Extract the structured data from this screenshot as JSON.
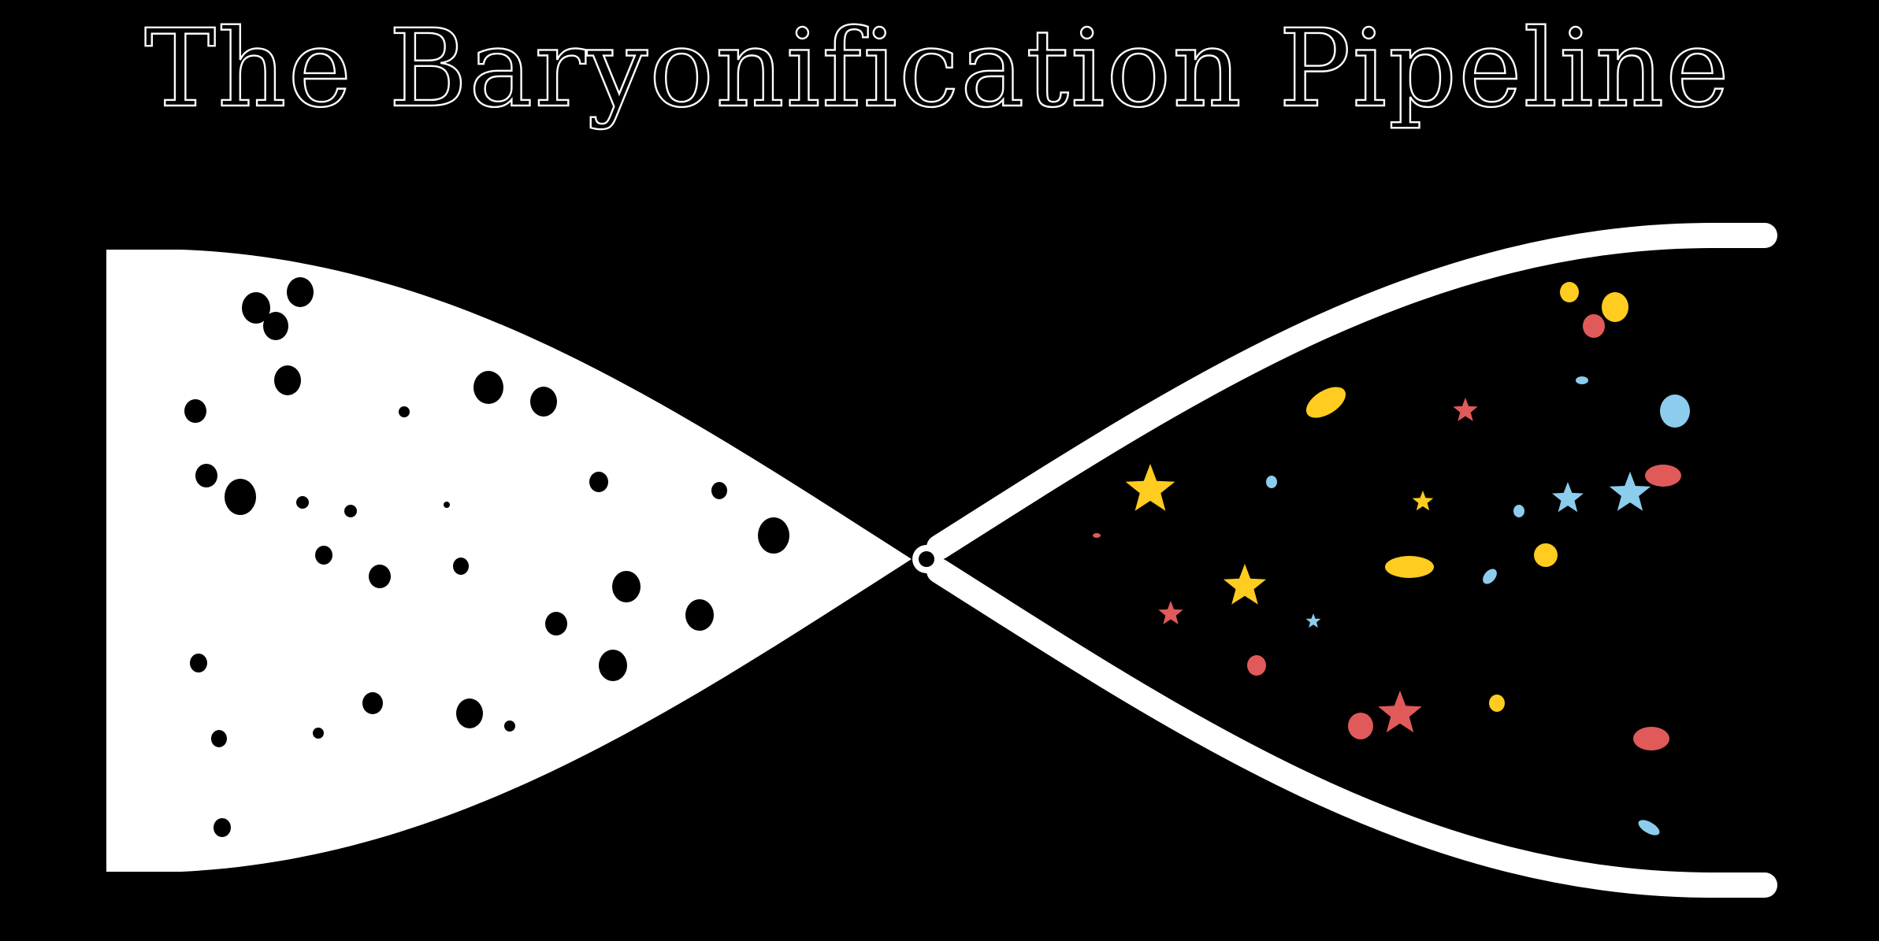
{
  "title": "The Baryonification Pipeline",
  "colors": {
    "background": "#000000",
    "foreground": "#ffffff",
    "gold": "#ffcc1f",
    "red": "#e05a5a",
    "blue": "#8ccdee"
  },
  "left_funnel": {
    "shape": "solid-horn",
    "fill": "#ffffff",
    "contents": "dark-matter-particles",
    "particle_color": "#000000"
  },
  "right_funnel": {
    "shape": "outlined-horn",
    "stroke": "#ffffff",
    "contents": "galaxies-and-stars",
    "icons": [
      "star-icon",
      "galaxy-ellipse-icon"
    ],
    "particle_colors": [
      "#ffcc1f",
      "#e05a5a",
      "#8ccdee"
    ]
  }
}
